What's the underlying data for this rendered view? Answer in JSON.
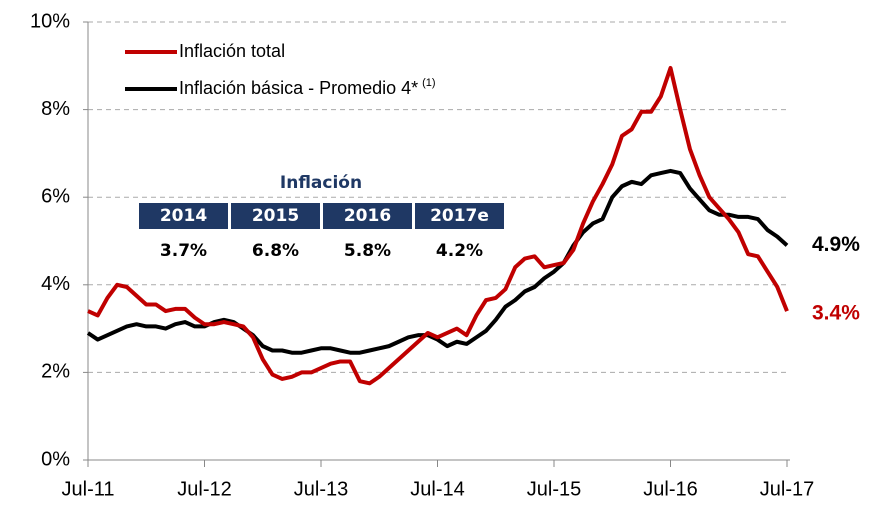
{
  "chart_data": {
    "type": "line",
    "categories": [
      "Jul-11",
      null,
      null,
      null,
      null,
      null,
      null,
      null,
      null,
      null,
      null,
      null,
      "Jul-12",
      null,
      null,
      null,
      null,
      null,
      null,
      null,
      null,
      null,
      null,
      null,
      "Jul-13",
      null,
      null,
      null,
      null,
      null,
      null,
      null,
      null,
      null,
      null,
      null,
      "Jul-14",
      null,
      null,
      null,
      null,
      null,
      null,
      null,
      null,
      null,
      null,
      null,
      "Jul-15",
      null,
      null,
      null,
      null,
      null,
      null,
      null,
      null,
      null,
      null,
      null,
      "Jul-16",
      null,
      null,
      null,
      null,
      null,
      null,
      null,
      null,
      null,
      null,
      null,
      "Jul-17"
    ],
    "series": [
      {
        "name": "Inflación total",
        "color": "#c00000",
        "end_label": "3.4%",
        "values": [
          3.4,
          3.3,
          3.7,
          4.0,
          3.95,
          3.75,
          3.55,
          3.55,
          3.4,
          3.45,
          3.45,
          3.25,
          3.1,
          3.1,
          3.15,
          3.1,
          3.05,
          2.8,
          2.3,
          1.95,
          1.85,
          1.9,
          2.0,
          2.0,
          2.1,
          2.2,
          2.25,
          2.25,
          1.8,
          1.75,
          1.9,
          2.1,
          2.3,
          2.5,
          2.7,
          2.9,
          2.8,
          2.9,
          3.0,
          2.85,
          3.3,
          3.65,
          3.7,
          3.9,
          4.4,
          4.6,
          4.65,
          4.4,
          4.45,
          4.5,
          4.8,
          5.4,
          5.9,
          6.3,
          6.75,
          7.4,
          7.55,
          7.95,
          7.95,
          8.3,
          8.95,
          8.0,
          7.1,
          6.5,
          6.0,
          5.75,
          5.5,
          5.2,
          4.7,
          4.65,
          4.3,
          3.95,
          3.4
        ]
      },
      {
        "name": "Inflación básica - Promedio 4*",
        "legend_note": "(1)",
        "color": "#000000",
        "end_label": "4.9%",
        "values": [
          2.9,
          2.75,
          2.85,
          2.95,
          3.05,
          3.1,
          3.05,
          3.05,
          3.0,
          3.1,
          3.15,
          3.05,
          3.05,
          3.15,
          3.2,
          3.15,
          3.0,
          2.85,
          2.6,
          2.5,
          2.5,
          2.45,
          2.45,
          2.5,
          2.55,
          2.55,
          2.5,
          2.45,
          2.45,
          2.5,
          2.55,
          2.6,
          2.7,
          2.8,
          2.85,
          2.85,
          2.75,
          2.6,
          2.7,
          2.65,
          2.8,
          2.95,
          3.2,
          3.5,
          3.65,
          3.85,
          3.95,
          4.15,
          4.3,
          4.5,
          4.9,
          5.2,
          5.4,
          5.5,
          6.0,
          6.25,
          6.35,
          6.3,
          6.5,
          6.55,
          6.6,
          6.55,
          6.2,
          5.95,
          5.7,
          5.6,
          5.6,
          5.55,
          5.55,
          5.5,
          5.25,
          5.1,
          4.9
        ]
      }
    ],
    "ylim": [
      0,
      10
    ],
    "yticks": [
      {
        "value": 0,
        "label": "0%"
      },
      {
        "value": 2,
        "label": "2%"
      },
      {
        "value": 4,
        "label": "4%"
      },
      {
        "value": 6,
        "label": "6%"
      },
      {
        "value": 8,
        "label": "8%"
      },
      {
        "value": 10,
        "label": "10%"
      }
    ],
    "grid": true,
    "legend": "upper left",
    "inset": {
      "title": "Inflación",
      "columns": [
        "2014",
        "2015",
        "2016",
        "2017e"
      ],
      "values": [
        "3.7%",
        "6.8%",
        "5.8%",
        "4.2%"
      ],
      "header_color": "#1f3864"
    }
  }
}
